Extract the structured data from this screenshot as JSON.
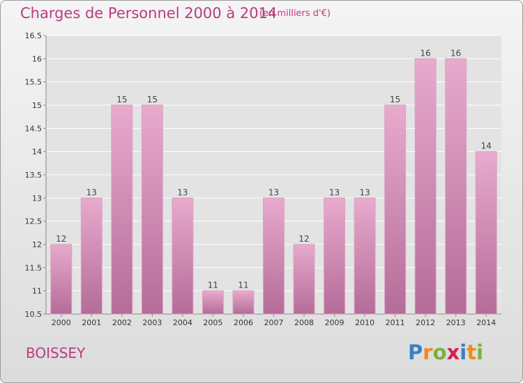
{
  "title": "Charges de Personnel 2000 à 2014",
  "subtitle": "(en milliers d'€)",
  "commune": "BOISSEY",
  "logo": {
    "letters": [
      "P",
      "r",
      "o",
      "x",
      "i",
      "t",
      "i"
    ],
    "colors": [
      "#3d7fc4",
      "#f08a1c",
      "#7bb23a",
      "#d3214f",
      "#3d7fc4",
      "#f08a1c",
      "#7bb23a"
    ]
  },
  "colors": {
    "accent": "#bb3a82",
    "bar_top": "#e8aacd",
    "bar_bottom": "#b46c98"
  },
  "chart_data": {
    "type": "bar",
    "categories": [
      "2000",
      "2001",
      "2002",
      "2003",
      "2004",
      "2005",
      "2006",
      "2007",
      "2008",
      "2009",
      "2010",
      "2011",
      "2012",
      "2013",
      "2014"
    ],
    "values": [
      12,
      13,
      15,
      15,
      13,
      11,
      11,
      13,
      12,
      13,
      13,
      15,
      16,
      16,
      14
    ],
    "labels": [
      "12",
      "13",
      "15",
      "15",
      "13",
      "11",
      "11",
      "13",
      "12",
      "13",
      "13",
      "15",
      "16",
      "16",
      "14"
    ],
    "ylim": [
      10.5,
      16.5
    ],
    "yticks": [
      10.5,
      11,
      11.5,
      12,
      12.5,
      13,
      13.5,
      14,
      14.5,
      15,
      15.5,
      16,
      16.5
    ],
    "ytick_labels": [
      "10.5",
      "11",
      "11.5",
      "12",
      "12.5",
      "13",
      "13.5",
      "14",
      "14.5",
      "15",
      "15.5",
      "16",
      "16.5"
    ],
    "grid": true,
    "xlabel": "",
    "ylabel": ""
  }
}
